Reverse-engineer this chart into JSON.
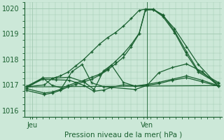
{
  "background_color": "#cce8d8",
  "grid_color": "#a0c8b0",
  "line_color": "#1a6030",
  "xlabel": "Pression niveau de la mer( hPa )",
  "ylim": [
    1015.75,
    1020.25
  ],
  "yticks": [
    1016,
    1017,
    1018,
    1019,
    1020
  ],
  "xtick_labels": [
    "Jeu",
    "Ven"
  ],
  "vline_xdata": 220,
  "xlim": [
    65,
    315
  ],
  "series": [
    {
      "x": [
        68,
        90,
        100,
        110,
        120,
        130,
        140,
        150,
        160,
        170,
        180,
        190,
        200,
        210,
        218,
        228,
        240,
        255,
        270,
        285,
        310
      ],
      "y": [
        1016.92,
        1017.0,
        1017.25,
        1017.35,
        1017.5,
        1017.75,
        1018.0,
        1018.3,
        1018.6,
        1018.85,
        1019.05,
        1019.3,
        1019.6,
        1019.92,
        1019.97,
        1019.97,
        1019.72,
        1019.2,
        1018.5,
        1017.8,
        1016.97
      ],
      "marker": "+"
    },
    {
      "x": [
        68,
        90,
        100,
        110,
        120,
        130,
        140,
        150,
        160,
        170,
        180,
        190,
        200,
        210,
        218,
        228,
        240,
        255,
        270,
        285,
        310
      ],
      "y": [
        1016.78,
        1016.62,
        1016.68,
        1016.78,
        1016.92,
        1017.02,
        1017.12,
        1017.22,
        1017.38,
        1017.58,
        1017.82,
        1018.08,
        1018.5,
        1019.0,
        1019.93,
        1019.95,
        1019.75,
        1019.1,
        1018.3,
        1017.55,
        1017.1
      ],
      "marker": "+"
    },
    {
      "x": [
        68,
        90,
        100,
        110,
        120,
        130,
        140,
        150,
        160,
        170,
        180,
        190,
        200,
        210,
        218,
        228,
        240,
        255,
        270,
        285,
        310
      ],
      "y": [
        1016.85,
        1016.68,
        1016.72,
        1016.82,
        1016.98,
        1017.08,
        1017.18,
        1017.3,
        1017.42,
        1017.62,
        1017.92,
        1018.22,
        1018.58,
        1019.02,
        1019.95,
        1019.95,
        1019.68,
        1019.05,
        1018.2,
        1017.5,
        1017.05
      ],
      "marker": "+"
    },
    {
      "x": [
        68,
        88,
        105,
        122,
        140,
        153,
        165,
        175,
        190,
        205,
        220,
        235,
        252,
        270,
        290,
        310
      ],
      "y": [
        1016.95,
        1017.27,
        1017.27,
        1017.3,
        1017.12,
        1016.82,
        1017.55,
        1017.78,
        1017.1,
        1016.95,
        1017.02,
        1017.1,
        1017.22,
        1017.35,
        1017.18,
        1016.97
      ],
      "marker": "+"
    },
    {
      "x": [
        68,
        88,
        105,
        122,
        140,
        153,
        165,
        175,
        190,
        205,
        220,
        235,
        252,
        270,
        290,
        310
      ],
      "y": [
        1016.92,
        1017.22,
        1017.2,
        1017.18,
        1016.98,
        1016.75,
        1016.8,
        1016.9,
        1017.0,
        1016.95,
        1016.98,
        1017.05,
        1017.18,
        1017.28,
        1017.12,
        1016.95
      ],
      "marker": "+"
    },
    {
      "x": [
        68,
        88,
        100,
        112,
        125,
        138,
        150,
        165,
        205,
        220,
        235,
        252,
        270,
        290,
        310
      ],
      "y": [
        1016.88,
        1017.27,
        1016.98,
        1016.88,
        1017.52,
        1017.8,
        1017.08,
        1016.93,
        1016.82,
        1016.98,
        1017.48,
        1017.68,
        1017.82,
        1017.52,
        1016.95
      ],
      "marker": "+"
    },
    {
      "x": [
        68,
        310
      ],
      "y": [
        1016.92,
        1016.97
      ],
      "marker": null
    }
  ]
}
